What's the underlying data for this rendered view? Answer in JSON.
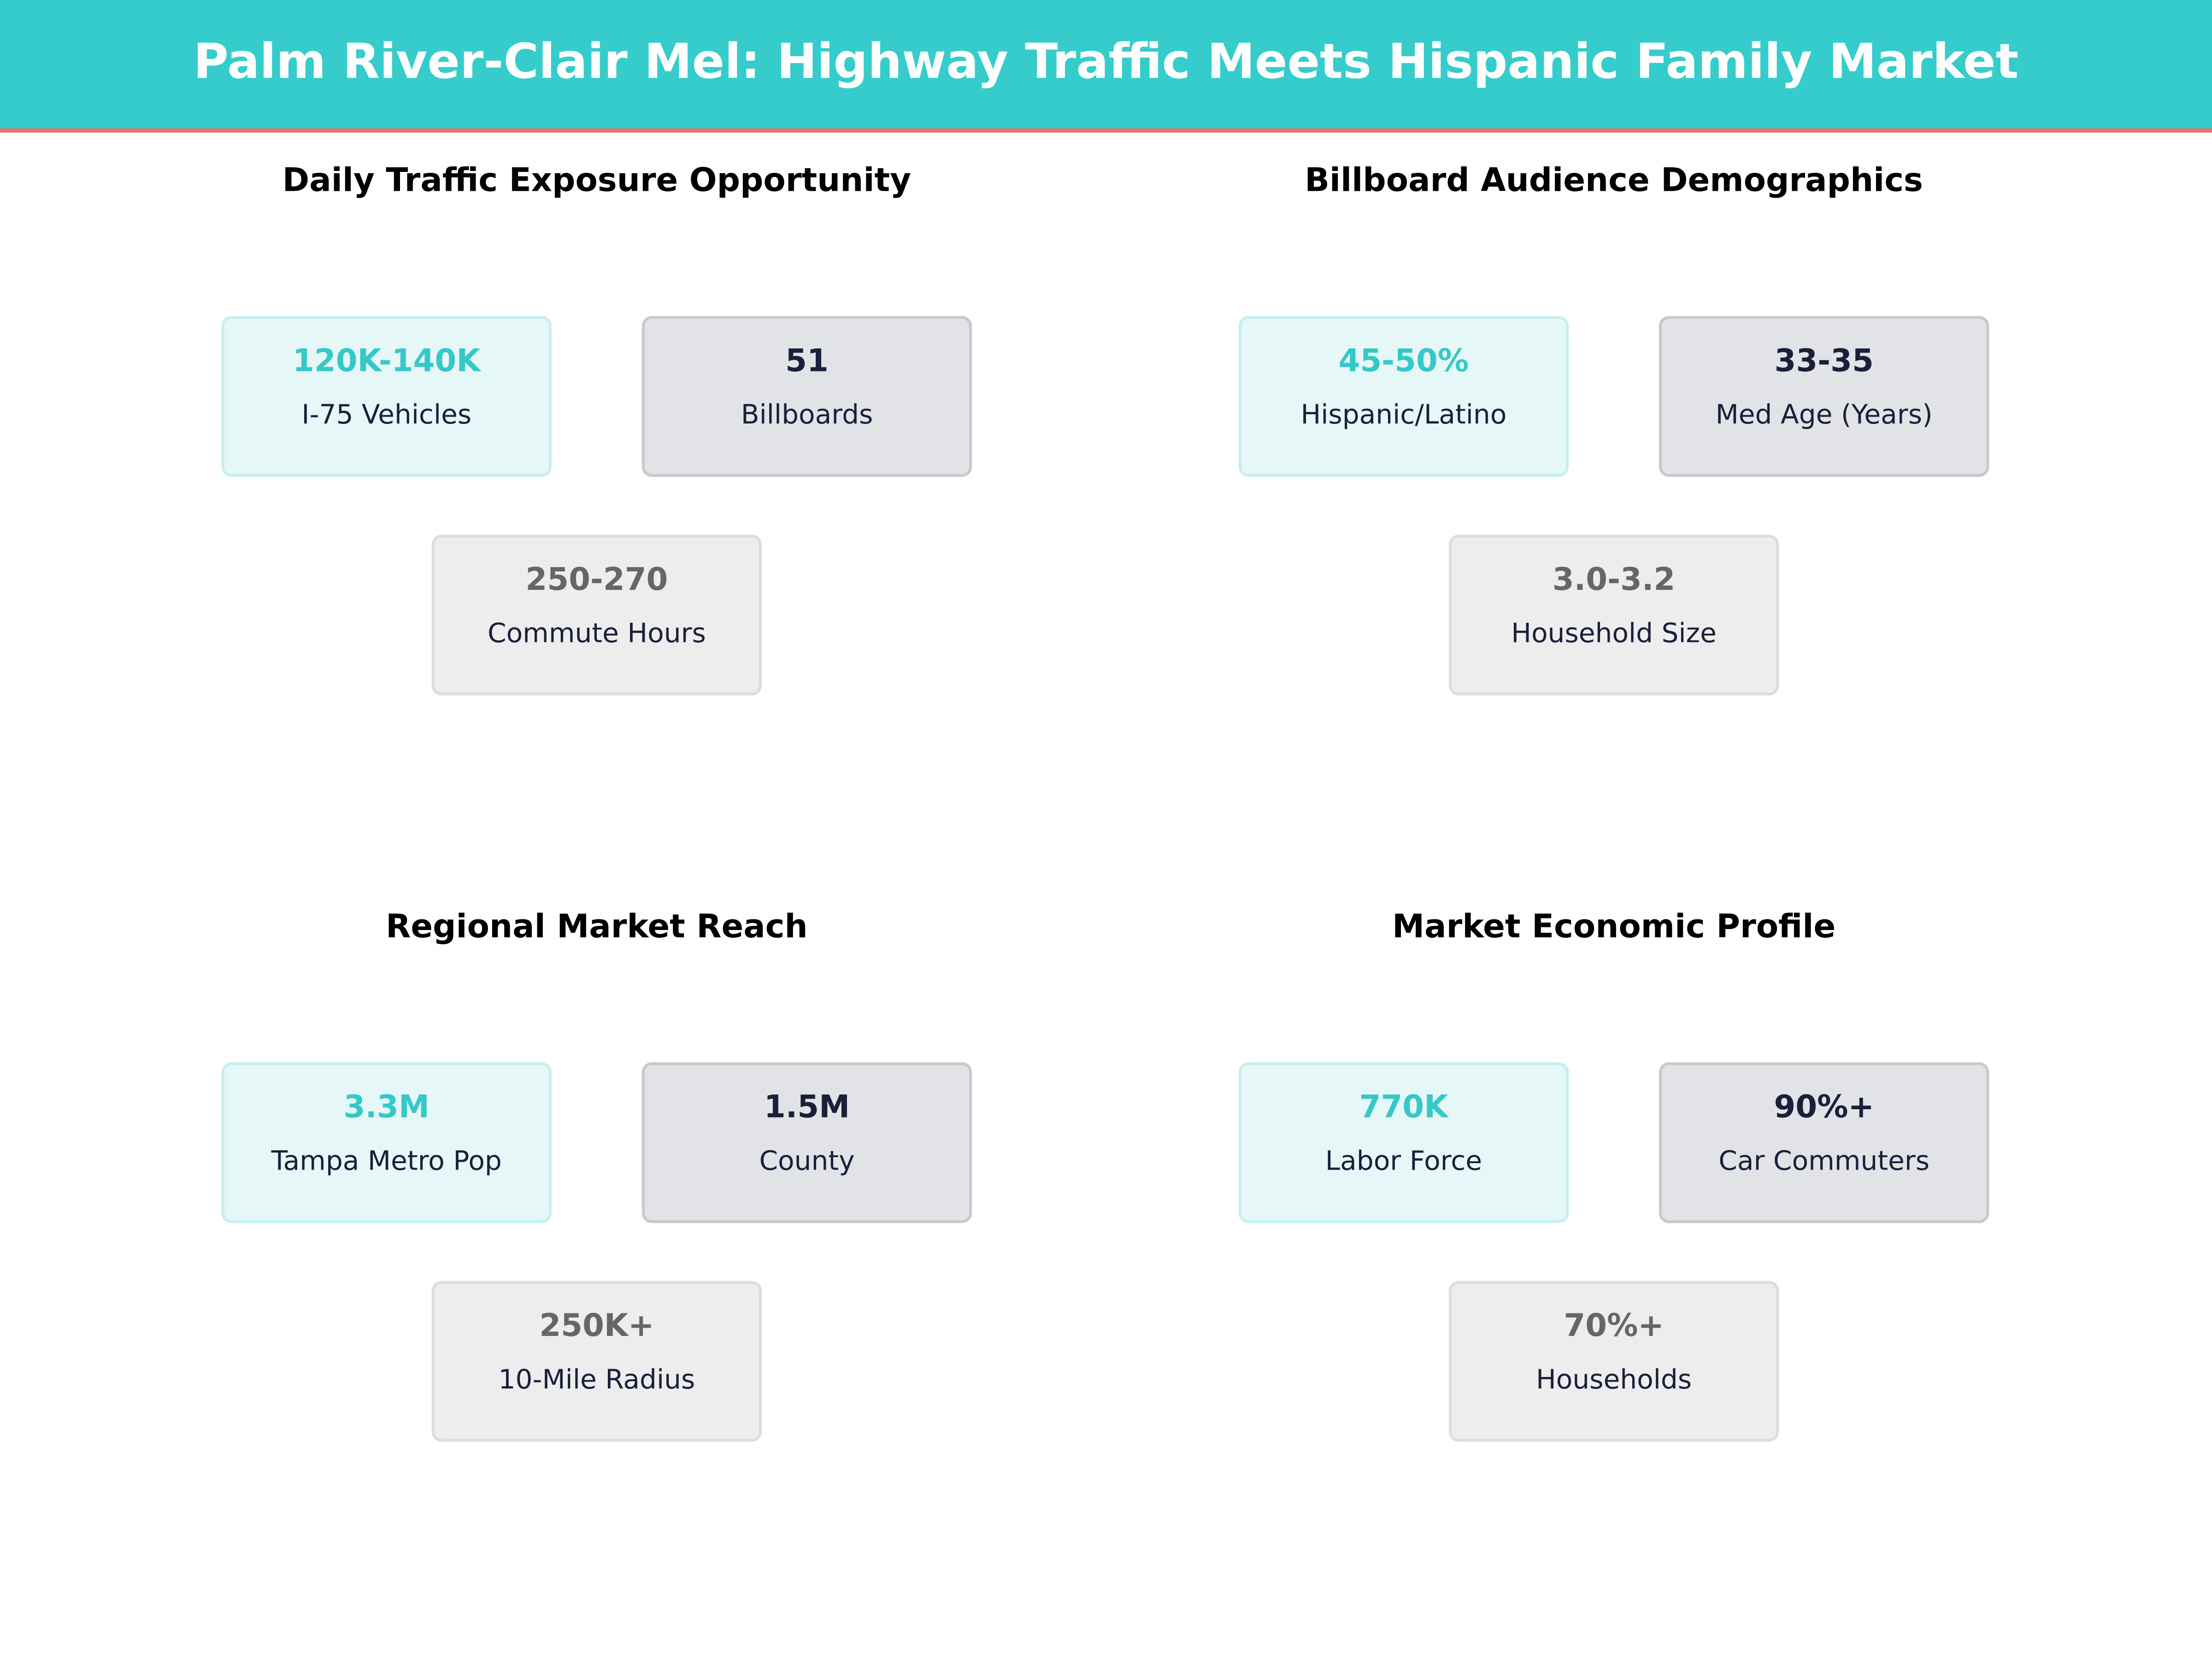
{
  "header": {
    "title": "Palm River-Clair Mel: Highway Traffic Meets Hispanic Family Market"
  },
  "panels": [
    {
      "title": "Daily Traffic Exposure Opportunity",
      "cards": [
        {
          "value": "120K-140K",
          "label": "I-75 Vehicles"
        },
        {
          "value": "51",
          "label": "Billboards"
        },
        {
          "value": "250-270",
          "label": "Commute Hours"
        }
      ]
    },
    {
      "title": "Billboard Audience Demographics",
      "cards": [
        {
          "value": "45-50%",
          "label": "Hispanic/Latino"
        },
        {
          "value": "33-35",
          "label": "Med Age (Years)"
        },
        {
          "value": "3.0-3.2",
          "label": "Household Size"
        }
      ]
    },
    {
      "title": "Regional Market Reach",
      "cards": [
        {
          "value": "3.3M",
          "label": "Tampa Metro Pop"
        },
        {
          "value": "1.5M",
          "label": "County"
        },
        {
          "value": "250K+",
          "label": "10-Mile Radius"
        }
      ]
    },
    {
      "title": "Market Economic Profile",
      "cards": [
        {
          "value": "770K",
          "label": "Labor Force"
        },
        {
          "value": "90%+",
          "label": "Car Commuters"
        },
        {
          "value": "70%+",
          "label": "Households"
        }
      ]
    }
  ]
}
